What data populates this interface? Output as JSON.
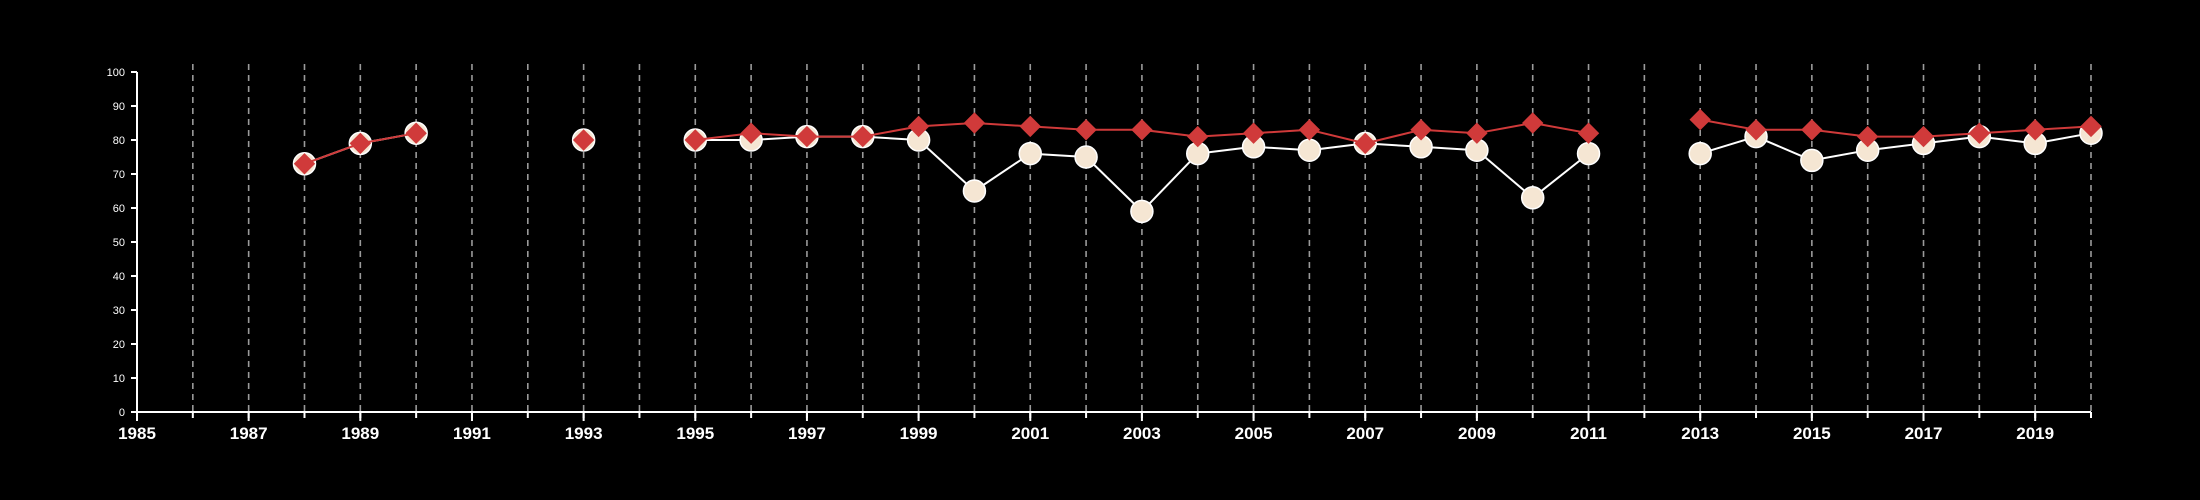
{
  "chart_data": {
    "type": "line",
    "title": "",
    "xlabel": "",
    "ylabel": "",
    "xlim": [
      1985,
      2020
    ],
    "ylim": [
      0,
      100
    ],
    "x_ticks": [
      1985,
      1987,
      1989,
      1991,
      1993,
      1995,
      1997,
      1999,
      2001,
      2003,
      2005,
      2007,
      2009,
      2011,
      2013,
      2015,
      2017,
      2019
    ],
    "x_tick_labels": [
      "1985",
      "1987",
      "1989",
      "1991",
      "1993",
      "1995",
      "1997",
      "1999",
      "2001",
      "2003",
      "2005",
      "2007",
      "2009",
      "2011",
      "2013",
      "2015",
      "2017",
      "2019"
    ],
    "y_ticks": [
      0,
      10,
      20,
      30,
      40,
      50,
      60,
      70,
      80,
      90,
      100
    ],
    "y_tick_labels": [
      "0",
      "10",
      "20",
      "30",
      "40",
      "50",
      "60",
      "70",
      "80",
      "90",
      "100"
    ],
    "grid": "vertical dashed lines at every year",
    "background": "#000000",
    "axis_color": "#ffffff",
    "legend": "none",
    "series": [
      {
        "marker": "circle",
        "color": "#f5e6d3",
        "line_color": "#ffffff",
        "points": [
          [
            1988,
            73
          ],
          [
            1989,
            79
          ],
          [
            1990,
            82
          ],
          [
            1993,
            80
          ],
          [
            1995,
            80
          ],
          [
            1996,
            80
          ],
          [
            1997,
            81
          ],
          [
            1998,
            81
          ],
          [
            1999,
            80
          ],
          [
            2000,
            65
          ],
          [
            2001,
            76
          ],
          [
            2002,
            75
          ],
          [
            2003,
            59
          ],
          [
            2004,
            76
          ],
          [
            2005,
            78
          ],
          [
            2006,
            77
          ],
          [
            2007,
            79
          ],
          [
            2008,
            78
          ],
          [
            2009,
            77
          ],
          [
            2010,
            63
          ],
          [
            2011,
            76
          ],
          [
            2013,
            76
          ],
          [
            2014,
            81
          ],
          [
            2015,
            74
          ],
          [
            2016,
            77
          ],
          [
            2017,
            79
          ],
          [
            2018,
            81
          ],
          [
            2019,
            79
          ],
          [
            2020,
            82
          ]
        ]
      },
      {
        "marker": "diamond",
        "color": "#d03a3a",
        "line_color": "#d03a3a",
        "points": [
          [
            1988,
            73
          ],
          [
            1989,
            79
          ],
          [
            1990,
            82
          ],
          [
            1993,
            80
          ],
          [
            1995,
            80
          ],
          [
            1996,
            82
          ],
          [
            1997,
            81
          ],
          [
            1998,
            81
          ],
          [
            1999,
            84
          ],
          [
            2000,
            85
          ],
          [
            2001,
            84
          ],
          [
            2002,
            83
          ],
          [
            2003,
            83
          ],
          [
            2004,
            81
          ],
          [
            2005,
            82
          ],
          [
            2006,
            83
          ],
          [
            2007,
            79
          ],
          [
            2008,
            83
          ],
          [
            2009,
            82
          ],
          [
            2010,
            85
          ],
          [
            2011,
            82
          ],
          [
            2013,
            86
          ],
          [
            2014,
            83
          ],
          [
            2015,
            83
          ],
          [
            2016,
            81
          ],
          [
            2017,
            81
          ],
          [
            2018,
            82
          ],
          [
            2019,
            83
          ],
          [
            2020,
            84
          ]
        ]
      }
    ]
  }
}
